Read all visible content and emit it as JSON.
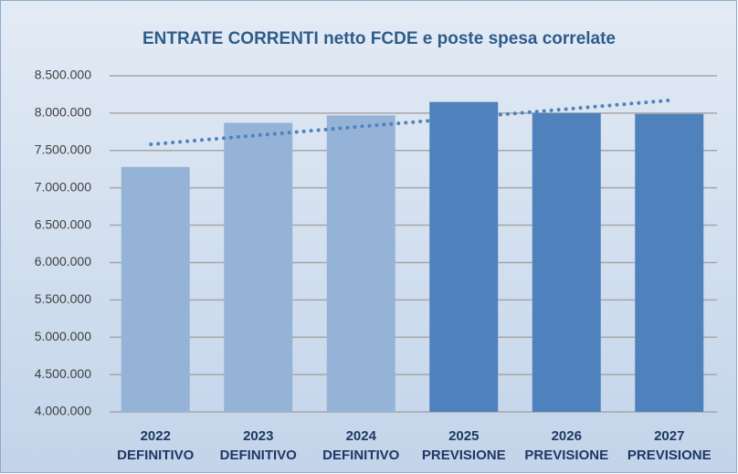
{
  "chart_data": {
    "type": "bar",
    "title": "ENTRATE CORRENTI netto FCDE e poste spesa correlate",
    "categories": [
      [
        "2022",
        "DEFINITIVO"
      ],
      [
        "2023",
        "DEFINITIVO"
      ],
      [
        "2024",
        "DEFINITIVO"
      ],
      [
        "2025",
        "PREVISIONE"
      ],
      [
        "2026",
        "PREVISIONE"
      ],
      [
        "2027",
        "PREVISIONE"
      ]
    ],
    "values": [
      7280000,
      7870000,
      7970000,
      8150000,
      8000000,
      7990000
    ],
    "colors": [
      "#95b3d7",
      "#95b3d7",
      "#95b3d7",
      "#4f81bd",
      "#4f81bd",
      "#4f81bd"
    ],
    "ylim": [
      4000000,
      8500000
    ],
    "yticks": [
      {
        "value": 4000000,
        "label": "4.000.000"
      },
      {
        "value": 4500000,
        "label": "4.500.000"
      },
      {
        "value": 5000000,
        "label": "5.000.000"
      },
      {
        "value": 5500000,
        "label": "5.500.000"
      },
      {
        "value": 6000000,
        "label": "6.000.000"
      },
      {
        "value": 6500000,
        "label": "6.500.000"
      },
      {
        "value": 7000000,
        "label": "7.000.000"
      },
      {
        "value": 7500000,
        "label": "7.500.000"
      },
      {
        "value": 8000000,
        "label": "8.000.000"
      },
      {
        "value": 8500000,
        "label": "8.500.000"
      }
    ],
    "grid": true,
    "trendline": "linear",
    "trendline_color": "#4f81bd"
  }
}
